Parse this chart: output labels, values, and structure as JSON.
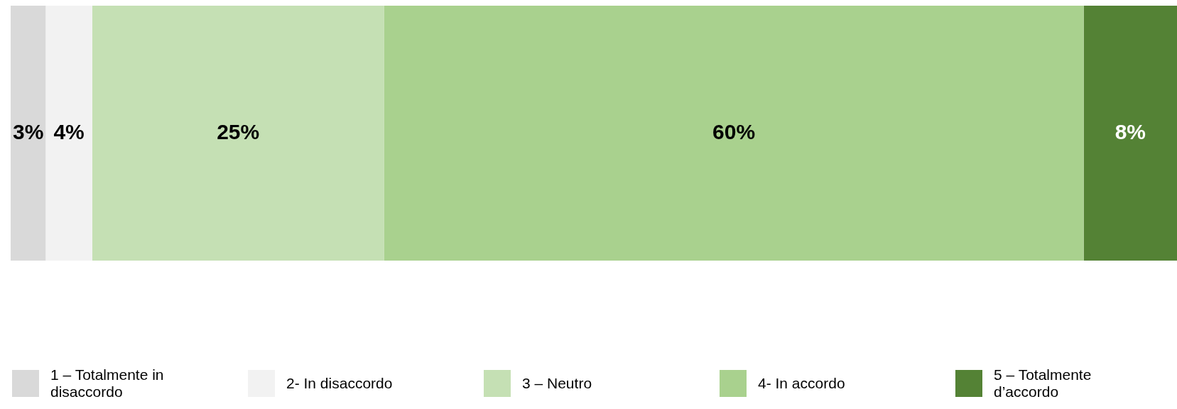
{
  "chart_data": {
    "type": "bar",
    "orientation": "horizontal",
    "stacked": true,
    "categories": [
      null
    ],
    "tick_labels": false,
    "legend": "bottom",
    "series": [
      {
        "name": "1 – Totalmente in disaccordo",
        "color": "#d9d9d9",
        "values": [
          3
        ],
        "value_labels": [
          "3%"
        ]
      },
      {
        "name": "2- In disaccordo",
        "color": "#f2f2f2",
        "values": [
          4
        ],
        "value_labels": [
          "4%"
        ]
      },
      {
        "name": "3 – Neutro",
        "color": "#c5e0b4",
        "values": [
          25
        ],
        "value_labels": [
          "25%"
        ]
      },
      {
        "name": "4- In accordo",
        "color": "#a9d18e",
        "values": [
          60
        ],
        "value_labels": [
          "60%"
        ]
      },
      {
        "name": "5 – Totalmente d’accordo",
        "color": "#548235",
        "values": [
          8
        ],
        "value_labels": [
          "8%"
        ]
      }
    ]
  }
}
